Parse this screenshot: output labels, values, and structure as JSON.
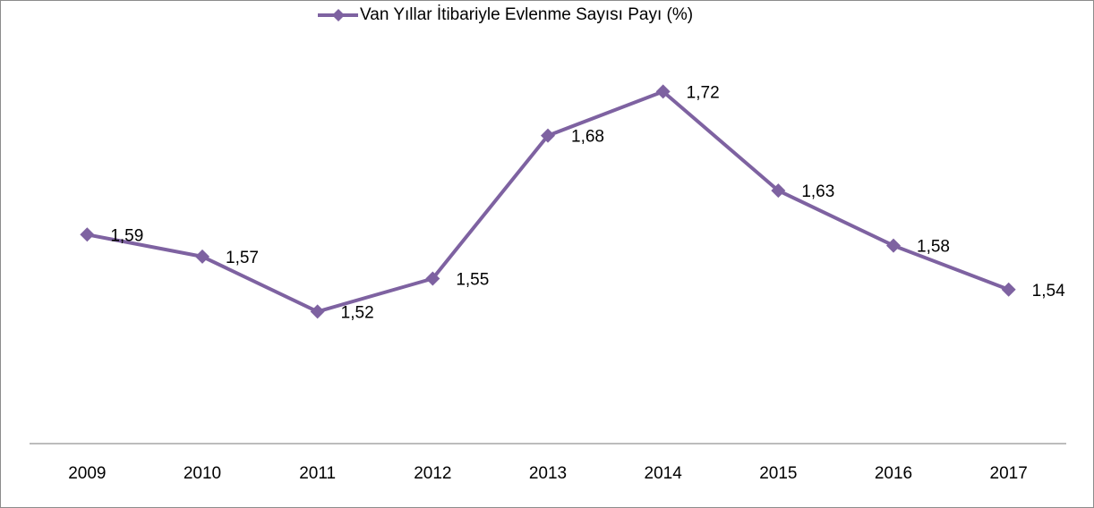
{
  "chart_data": {
    "type": "line",
    "categories": [
      "2009",
      "2010",
      "2011",
      "2012",
      "2013",
      "2014",
      "2015",
      "2016",
      "2017"
    ],
    "series": [
      {
        "name": "Van Yıllar İtibariyle Evlenme Sayısı Payı (%)",
        "color": "#7e62a1",
        "values": [
          1.59,
          1.57,
          1.52,
          1.55,
          1.68,
          1.72,
          1.63,
          1.58,
          1.54
        ],
        "value_labels": [
          "1,59",
          "1,57",
          "1,52",
          "1,55",
          "1,68",
          "1,72",
          "1,63",
          "1,58",
          "1,54"
        ]
      }
    ],
    "ylim": [
      1.4,
      1.8
    ],
    "legend": "top"
  }
}
